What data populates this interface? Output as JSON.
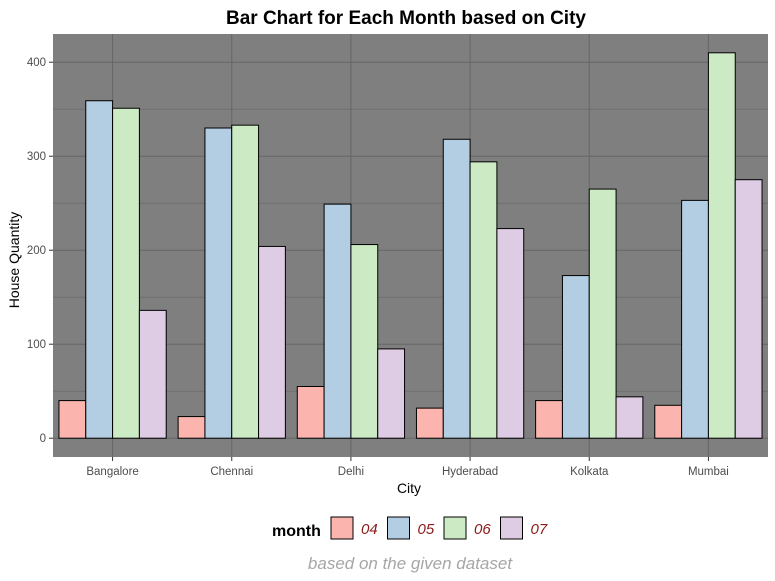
{
  "chart_data": {
    "type": "bar",
    "title": "Bar Chart for Each Month based on City",
    "xlabel": "City",
    "ylabel": "House Quantity",
    "caption": "based on the given dataset",
    "categories": [
      "Bangalore",
      "Chennai",
      "Delhi",
      "Hyderabad",
      "Kolkata",
      "Mumbai"
    ],
    "yticks": [
      0,
      100,
      200,
      300,
      400
    ],
    "ylim": [
      -20,
      430
    ],
    "grid": true,
    "legend": {
      "title": "month",
      "position": "bottom"
    },
    "series": [
      {
        "name": "04",
        "color": "#fbb4ae",
        "values": [
          40,
          23,
          55,
          32,
          40,
          35
        ]
      },
      {
        "name": "05",
        "color": "#b3cde3",
        "values": [
          359,
          330,
          249,
          318,
          173,
          253
        ]
      },
      {
        "name": "06",
        "color": "#ccebc5",
        "values": [
          351,
          333,
          206,
          294,
          265,
          410
        ]
      },
      {
        "name": "07",
        "color": "#decbe4",
        "values": [
          136,
          204,
          95,
          223,
          44,
          275
        ]
      }
    ],
    "colors": {
      "panel_background": "#7f7f7f",
      "grid": "#666666",
      "bar_outline": "#000000"
    }
  }
}
